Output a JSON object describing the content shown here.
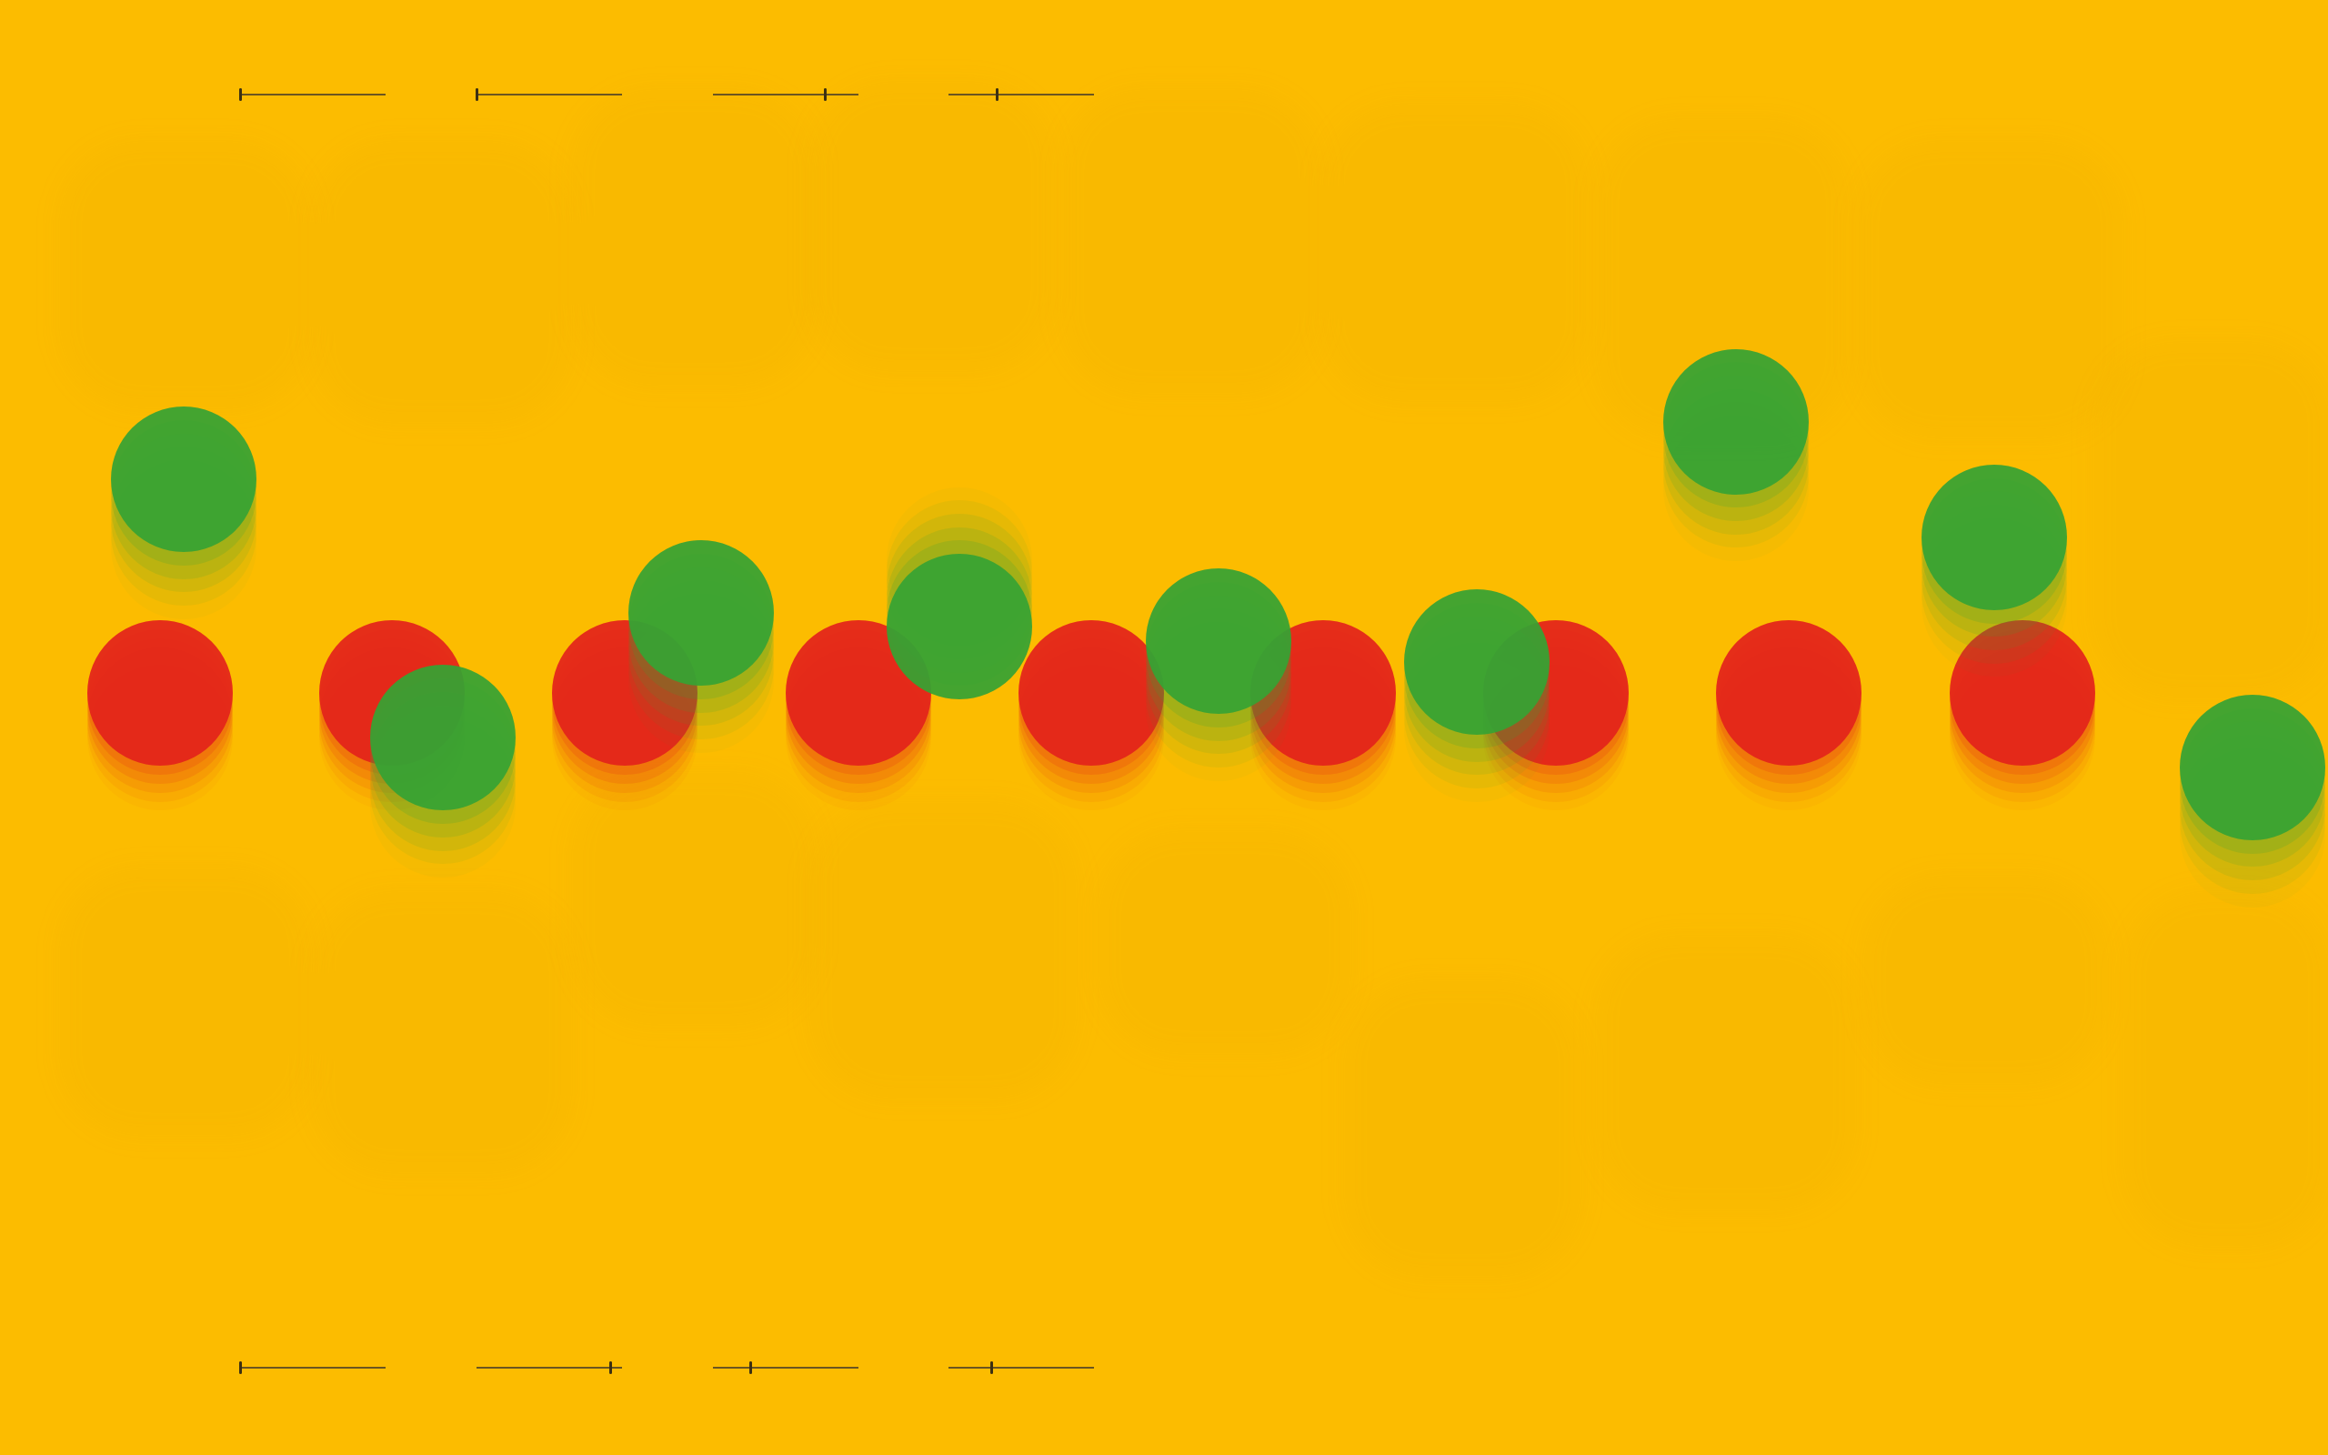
{
  "colors": {
    "background": "#fcbc00",
    "red_ball": "#e3241b",
    "green_ball": "#36a334"
  },
  "sliders": {
    "top": [
      0.0,
      0.0,
      0.77,
      0.33
    ],
    "bottom": [
      0.0,
      0.92,
      0.26,
      0.29
    ]
  },
  "balls": {
    "red": [
      {
        "pair": 1,
        "trail": "down"
      },
      {
        "pair": 2,
        "trail": "down"
      },
      {
        "pair": 3,
        "trail": "down"
      },
      {
        "pair": 4,
        "trail": "down"
      },
      {
        "pair": 5,
        "trail": "down"
      },
      {
        "pair": 6,
        "trail": "down"
      },
      {
        "pair": 7,
        "trail": "down"
      },
      {
        "pair": 8,
        "trail": "down"
      },
      {
        "pair": 9,
        "trail": "down"
      }
    ],
    "green": [
      {
        "pair": 1,
        "trail": "down"
      },
      {
        "pair": 2,
        "trail": "down"
      },
      {
        "pair": 3,
        "trail": "down"
      },
      {
        "pair": 4,
        "trail": "up"
      },
      {
        "pair": 5,
        "trail": "down"
      },
      {
        "pair": 6,
        "trail": "down"
      },
      {
        "pair": 7,
        "trail": "down"
      },
      {
        "pair": 8,
        "trail": "down"
      },
      {
        "pair": 9,
        "trail": "down"
      }
    ]
  }
}
